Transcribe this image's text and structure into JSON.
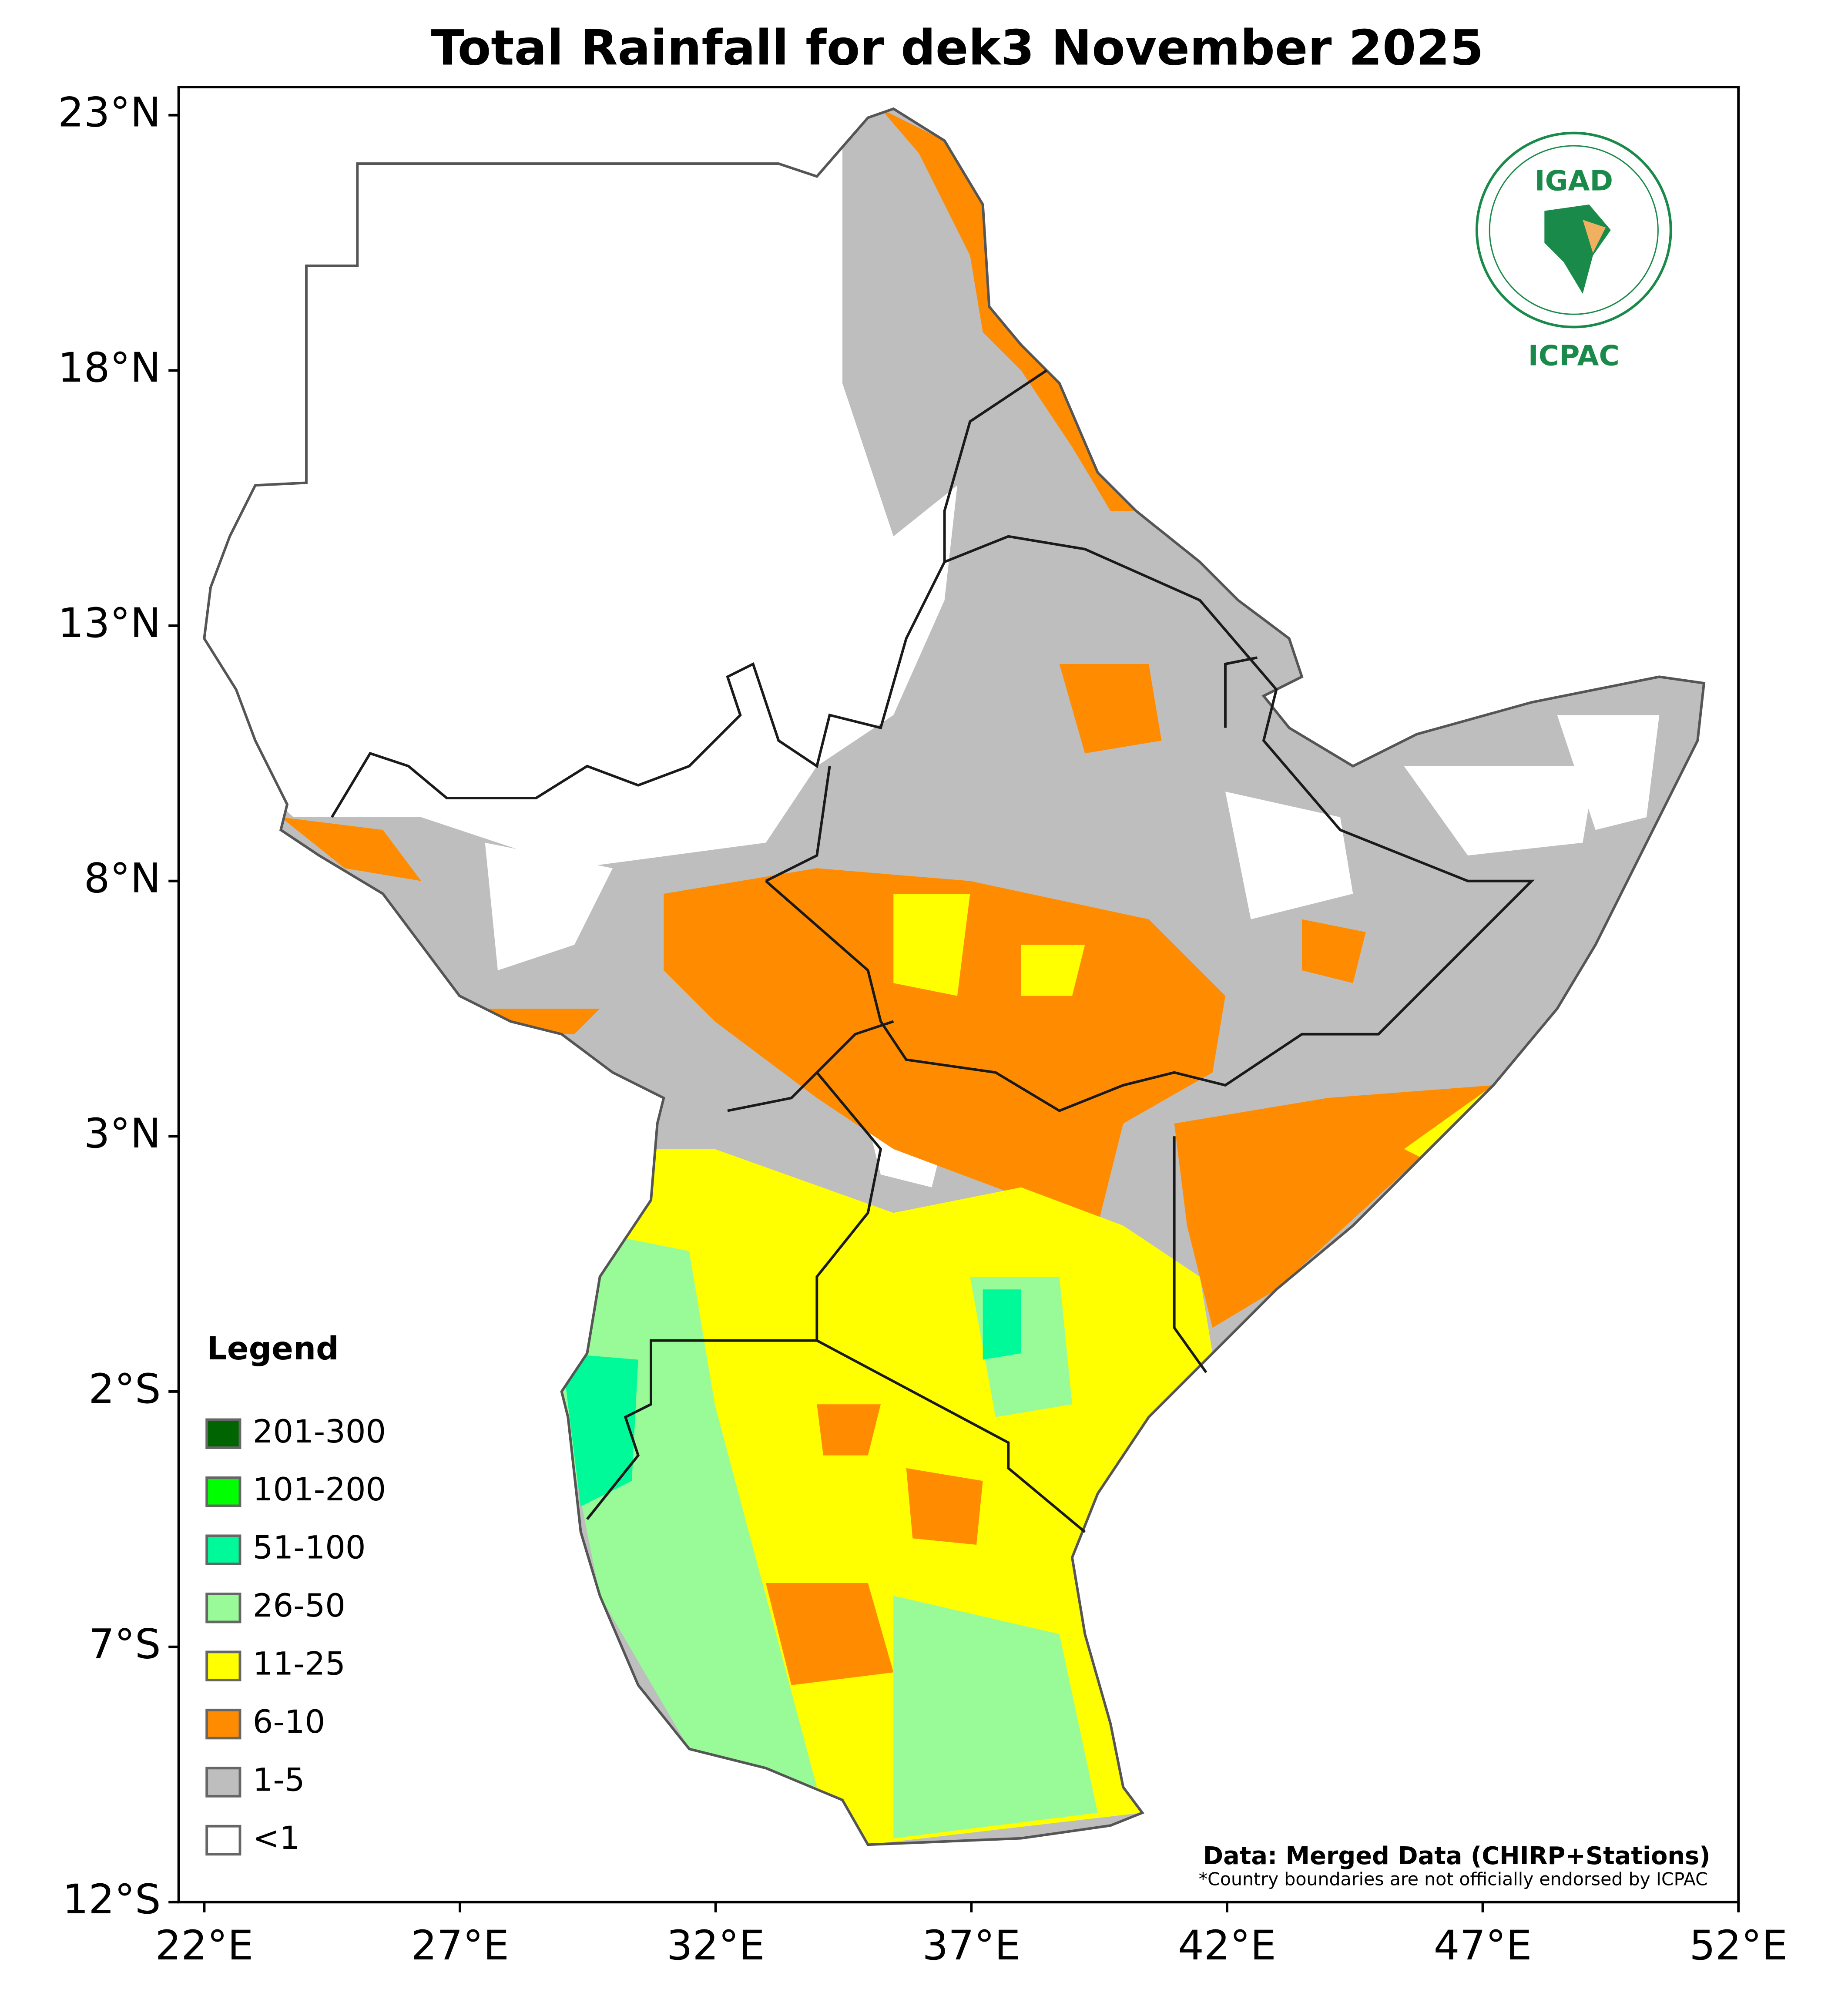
{
  "chart_data": {
    "type": "map",
    "title": "Total Rainfall for dek3 November 2025",
    "xlim": [
      21.5,
      52
    ],
    "ylim": [
      -12,
      23.55
    ],
    "xticks": [
      {
        "value": 22,
        "label": "22°E"
      },
      {
        "value": 27,
        "label": "27°E"
      },
      {
        "value": 32,
        "label": "32°E"
      },
      {
        "value": 37,
        "label": "37°E"
      },
      {
        "value": 42,
        "label": "42°E"
      },
      {
        "value": 47,
        "label": "47°E"
      },
      {
        "value": 52,
        "label": "52°E"
      }
    ],
    "yticks": [
      {
        "value": 23,
        "label": "23°N"
      },
      {
        "value": 18,
        "label": "18°N"
      },
      {
        "value": 13,
        "label": "13°N"
      },
      {
        "value": 8,
        "label": "8°N"
      },
      {
        "value": 3,
        "label": "3°N"
      },
      {
        "value": -2,
        "label": "2°S"
      },
      {
        "value": -7,
        "label": "7°S"
      },
      {
        "value": -12,
        "label": "12°S"
      }
    ],
    "legend": {
      "title": "Legend",
      "items": [
        {
          "label": "201-300",
          "color": "#006400"
        },
        {
          "label": "101-200",
          "color": "#00ff00"
        },
        {
          "label": "51-100",
          "color": "#00fa9a"
        },
        {
          "label": "26-50",
          "color": "#98fb98"
        },
        {
          "label": "11-25",
          "color": "#ffff00"
        },
        {
          "label": "6-10",
          "color": "#ff8c00"
        },
        {
          "label": "1-5",
          "color": "#bebebe"
        },
        {
          "label": "<1",
          "color": "#ffffff"
        }
      ]
    },
    "logo": {
      "name": "IGAD",
      "centre": "ICPAC"
    },
    "source": "Data: Merged Data (CHIRP+Stations)",
    "disclaimer": "*Country boundaries are not officially endorsed by ICPAC"
  }
}
